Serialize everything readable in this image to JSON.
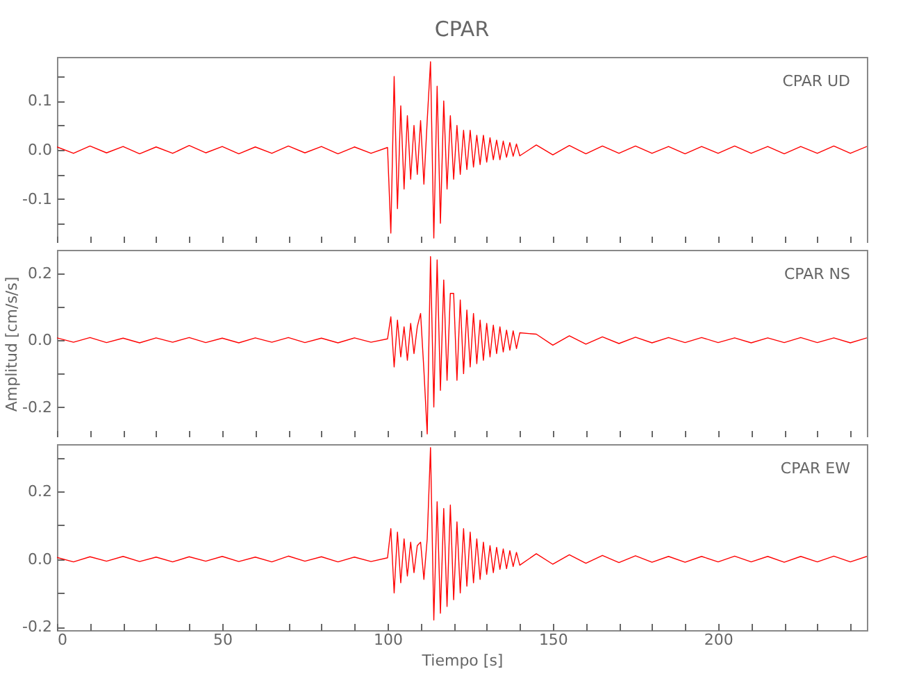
{
  "chart_data": [
    {
      "type": "line",
      "title": "CPAR",
      "annotations": [
        "CPAR UD"
      ],
      "tick_labels": "y",
      "xlim": [
        0,
        245
      ],
      "ylim": [
        -0.19,
        0.19
      ],
      "xticks": [
        0,
        {
          "value": 10,
          "label": null
        },
        {
          "value": 20,
          "label": null
        },
        {
          "value": 30,
          "label": null
        },
        {
          "value": 40,
          "label": null
        },
        50,
        {
          "value": 60,
          "label": null
        },
        {
          "value": 70,
          "label": null
        },
        {
          "value": 80,
          "label": null
        },
        {
          "value": 90,
          "label": null
        },
        100,
        {
          "value": 110,
          "label": null
        },
        {
          "value": 120,
          "label": null
        },
        {
          "value": 130,
          "label": null
        },
        {
          "value": 140,
          "label": null
        },
        150,
        {
          "value": 160,
          "label": null
        },
        {
          "value": 170,
          "label": null
        },
        {
          "value": 180,
          "label": null
        },
        {
          "value": 190,
          "label": null
        },
        200,
        {
          "value": 210,
          "label": null
        },
        {
          "value": 220,
          "label": null
        },
        {
          "value": 230,
          "label": null
        },
        {
          "value": 240,
          "label": null
        }
      ],
      "yticks": [
        {
          "value": -0.15,
          "label": null
        },
        -0.1,
        {
          "value": -0.05,
          "label": null
        },
        {
          "value": 0,
          "label": "0.0"
        },
        {
          "value": 0.05,
          "label": null
        },
        0.1,
        {
          "value": 0.15,
          "label": null
        }
      ],
      "x": [
        0,
        5,
        10,
        15,
        20,
        25,
        30,
        35,
        40,
        45,
        50,
        55,
        60,
        65,
        70,
        75,
        80,
        85,
        90,
        95,
        100,
        101,
        102,
        103,
        104,
        105,
        106,
        107,
        108,
        109,
        110,
        111,
        112,
        113,
        114,
        115,
        116,
        117,
        118,
        119,
        120,
        121,
        122,
        123,
        124,
        125,
        126,
        127,
        128,
        129,
        130,
        131,
        132,
        133,
        134,
        135,
        136,
        137,
        138,
        139,
        140,
        145,
        150,
        155,
        160,
        165,
        170,
        175,
        180,
        185,
        190,
        195,
        200,
        205,
        210,
        215,
        220,
        225,
        230,
        235,
        240,
        245
      ],
      "series": [
        {
          "color": "#ff0000",
          "values": [
            0.006,
            -0.007,
            0.008,
            -0.006,
            0.007,
            -0.008,
            0.006,
            -0.007,
            0.009,
            -0.006,
            0.007,
            -0.008,
            0.006,
            -0.007,
            0.008,
            -0.006,
            0.007,
            -0.008,
            0.006,
            -0.007,
            0.005,
            -0.17,
            0.15,
            -0.12,
            0.09,
            -0.08,
            0.07,
            -0.06,
            0.05,
            -0.05,
            0.06,
            -0.07,
            0.06,
            0.18,
            -0.18,
            0.13,
            -0.15,
            0.1,
            -0.08,
            0.07,
            -0.06,
            0.05,
            -0.05,
            0.04,
            -0.04,
            0.04,
            -0.035,
            0.03,
            -0.03,
            0.03,
            -0.025,
            0.025,
            -0.02,
            0.02,
            -0.02,
            0.018,
            -0.015,
            0.015,
            -0.013,
            0.012,
            -0.012,
            0.01,
            -0.01,
            0.009,
            -0.008,
            0.008,
            -0.007,
            0.008,
            -0.007,
            0.007,
            -0.008,
            0.007,
            -0.007,
            0.008,
            -0.007,
            0.007,
            -0.008,
            0.007,
            -0.007,
            0.008,
            -0.007,
            0.007
          ]
        }
      ]
    },
    {
      "type": "line",
      "ylabel": "Amplitud [cm/s/s]",
      "annotations": [
        "CPAR NS"
      ],
      "tick_labels": "y",
      "xlim": [
        0,
        245
      ],
      "ylim": [
        -0.29,
        0.27
      ],
      "xticks": [
        0,
        {
          "value": 10,
          "label": null
        },
        {
          "value": 20,
          "label": null
        },
        {
          "value": 30,
          "label": null
        },
        {
          "value": 40,
          "label": null
        },
        50,
        {
          "value": 60,
          "label": null
        },
        {
          "value": 70,
          "label": null
        },
        {
          "value": 80,
          "label": null
        },
        {
          "value": 90,
          "label": null
        },
        100,
        {
          "value": 110,
          "label": null
        },
        {
          "value": 120,
          "label": null
        },
        {
          "value": 130,
          "label": null
        },
        {
          "value": 140,
          "label": null
        },
        150,
        {
          "value": 160,
          "label": null
        },
        {
          "value": 170,
          "label": null
        },
        {
          "value": 180,
          "label": null
        },
        {
          "value": 190,
          "label": null
        },
        200,
        {
          "value": 210,
          "label": null
        },
        {
          "value": 220,
          "label": null
        },
        {
          "value": 230,
          "label": null
        },
        {
          "value": 240,
          "label": null
        }
      ],
      "yticks": [
        -0.2,
        {
          "value": -0.1,
          "label": null
        },
        {
          "value": 0,
          "label": "0.0"
        },
        {
          "value": 0.1,
          "label": null
        },
        0.2
      ],
      "x": [
        0,
        5,
        10,
        15,
        20,
        25,
        30,
        35,
        40,
        45,
        50,
        55,
        60,
        65,
        70,
        75,
        80,
        85,
        90,
        95,
        100,
        101,
        102,
        103,
        104,
        105,
        106,
        107,
        108,
        109,
        110,
        111,
        112,
        113,
        114,
        115,
        116,
        117,
        118,
        119,
        120,
        121,
        122,
        123,
        124,
        125,
        126,
        127,
        128,
        129,
        130,
        131,
        132,
        133,
        134,
        135,
        136,
        137,
        138,
        139,
        140,
        145,
        150,
        155,
        160,
        165,
        170,
        175,
        180,
        185,
        190,
        195,
        200,
        205,
        210,
        215,
        220,
        225,
        230,
        235,
        240,
        245
      ],
      "series": [
        {
          "color": "#ff0000",
          "values": [
            0.007,
            -0.006,
            0.008,
            -0.007,
            0.006,
            -0.008,
            0.007,
            -0.006,
            0.008,
            -0.007,
            0.006,
            -0.008,
            0.007,
            -0.006,
            0.008,
            -0.007,
            0.006,
            -0.008,
            0.007,
            -0.006,
            0.004,
            0.07,
            -0.08,
            0.06,
            -0.05,
            0.04,
            -0.06,
            0.05,
            -0.04,
            0.04,
            0.08,
            -0.09,
            -0.28,
            0.25,
            -0.2,
            0.24,
            -0.15,
            0.18,
            -0.12,
            0.14,
            0.14,
            -0.12,
            0.12,
            -0.1,
            0.09,
            -0.08,
            0.08,
            -0.07,
            0.06,
            -0.06,
            0.05,
            -0.05,
            0.045,
            -0.04,
            0.04,
            -0.035,
            0.03,
            -0.03,
            0.028,
            -0.025,
            0.022,
            0.018,
            -0.015,
            0.013,
            -0.012,
            0.01,
            -0.01,
            0.009,
            -0.008,
            0.008,
            -0.007,
            0.008,
            -0.007,
            0.007,
            -0.008,
            0.007,
            -0.007,
            0.008,
            -0.007,
            0.007,
            -0.008,
            0.007
          ]
        }
      ]
    },
    {
      "type": "line",
      "xlabel": "Tiempo [s]",
      "annotations": [
        "CPAR EW"
      ],
      "xlim": [
        0,
        245
      ],
      "ylim": [
        -0.21,
        0.34
      ],
      "xticks": [
        0,
        {
          "value": 10,
          "label": null
        },
        {
          "value": 20,
          "label": null
        },
        {
          "value": 30,
          "label": null
        },
        {
          "value": 40,
          "label": null
        },
        50,
        {
          "value": 60,
          "label": null
        },
        {
          "value": 70,
          "label": null
        },
        {
          "value": 80,
          "label": null
        },
        {
          "value": 90,
          "label": null
        },
        100,
        {
          "value": 110,
          "label": null
        },
        {
          "value": 120,
          "label": null
        },
        {
          "value": 130,
          "label": null
        },
        {
          "value": 140,
          "label": null
        },
        150,
        {
          "value": 160,
          "label": null
        },
        {
          "value": 170,
          "label": null
        },
        {
          "value": 180,
          "label": null
        },
        {
          "value": 190,
          "label": null
        },
        200,
        {
          "value": 210,
          "label": null
        },
        {
          "value": 220,
          "label": null
        },
        {
          "value": 230,
          "label": null
        },
        {
          "value": 240,
          "label": null
        }
      ],
      "yticks": [
        -0.2,
        {
          "value": -0.1,
          "label": null
        },
        {
          "value": 0,
          "label": "0.0"
        },
        {
          "value": 0.1,
          "label": null
        },
        0.2,
        {
          "value": 0.3,
          "label": null
        }
      ],
      "x": [
        0,
        5,
        10,
        15,
        20,
        25,
        30,
        35,
        40,
        45,
        50,
        55,
        60,
        65,
        70,
        75,
        80,
        85,
        90,
        95,
        100,
        101,
        102,
        103,
        104,
        105,
        106,
        107,
        108,
        109,
        110,
        111,
        112,
        113,
        114,
        115,
        116,
        117,
        118,
        119,
        120,
        121,
        122,
        123,
        124,
        125,
        126,
        127,
        128,
        129,
        130,
        131,
        132,
        133,
        134,
        135,
        136,
        137,
        138,
        139,
        140,
        145,
        150,
        155,
        160,
        165,
        170,
        175,
        180,
        185,
        190,
        195,
        200,
        205,
        210,
        215,
        220,
        225,
        230,
        235,
        240,
        245
      ],
      "series": [
        {
          "color": "#ff0000",
          "values": [
            0.005,
            -0.008,
            0.007,
            -0.006,
            0.008,
            -0.007,
            0.006,
            -0.008,
            0.007,
            -0.006,
            0.008,
            -0.007,
            0.006,
            -0.008,
            0.009,
            -0.006,
            0.007,
            -0.008,
            0.006,
            -0.007,
            0.004,
            0.09,
            -0.1,
            0.08,
            -0.07,
            0.06,
            -0.05,
            0.05,
            -0.04,
            0.04,
            0.05,
            -0.06,
            0.06,
            0.33,
            -0.18,
            0.17,
            -0.16,
            0.15,
            -0.14,
            0.16,
            -0.12,
            0.11,
            -0.1,
            0.09,
            -0.08,
            0.08,
            -0.07,
            0.06,
            -0.06,
            0.05,
            -0.045,
            0.04,
            -0.04,
            0.035,
            -0.03,
            0.03,
            -0.028,
            0.025,
            -0.022,
            0.02,
            -0.018,
            0.016,
            -0.015,
            0.013,
            -0.012,
            0.011,
            -0.01,
            0.01,
            -0.009,
            0.008,
            -0.009,
            0.008,
            -0.008,
            0.009,
            -0.008,
            0.008,
            -0.009,
            0.008,
            -0.008,
            0.009,
            -0.008,
            0.008
          ]
        }
      ]
    }
  ]
}
